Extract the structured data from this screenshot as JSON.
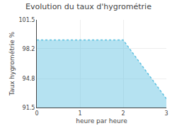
{
  "chart_data": {
    "type": "area",
    "title": "Evolution du taux d'hygrométrie",
    "xlabel": "heure par heure",
    "ylabel": "Taux hygrométrie %",
    "x": [
      0,
      2,
      3
    ],
    "values": [
      99.2,
      99.2,
      92.5
    ],
    "xlim": [
      0,
      3
    ],
    "ylim": [
      91.5,
      101.5
    ],
    "xticks": [
      0,
      1,
      2,
      3
    ],
    "yticks": [
      91.5,
      94.8,
      98.2,
      101.5
    ],
    "color": "#5bbfdf",
    "line_style": "dotted",
    "grid": true
  }
}
